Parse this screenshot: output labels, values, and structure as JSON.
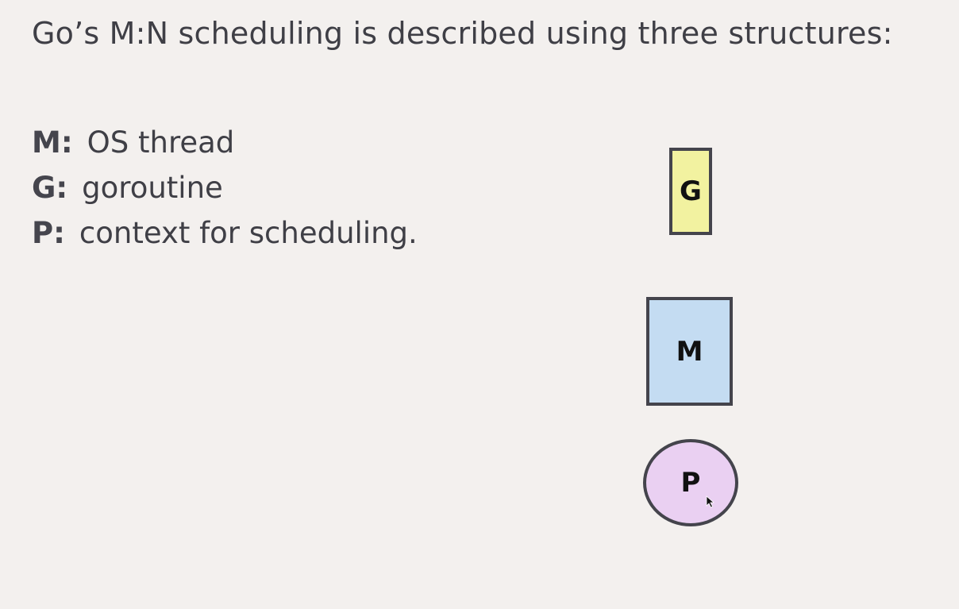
{
  "title": "Go’s M:N scheduling is described using three structures:",
  "definitions": [
    {
      "key": "M:",
      "text": "OS thread"
    },
    {
      "key": "G:",
      "text": "goroutine"
    },
    {
      "key": "P:",
      "text": "context for scheduling."
    }
  ],
  "diagram": {
    "g": {
      "label": "G",
      "color": "#f2f2a0"
    },
    "m": {
      "label": "M",
      "color": "#c4dcf2"
    },
    "p": {
      "label": "P",
      "color": "#ead0f2"
    }
  },
  "cursor_icon": "mouse-pointer-icon"
}
